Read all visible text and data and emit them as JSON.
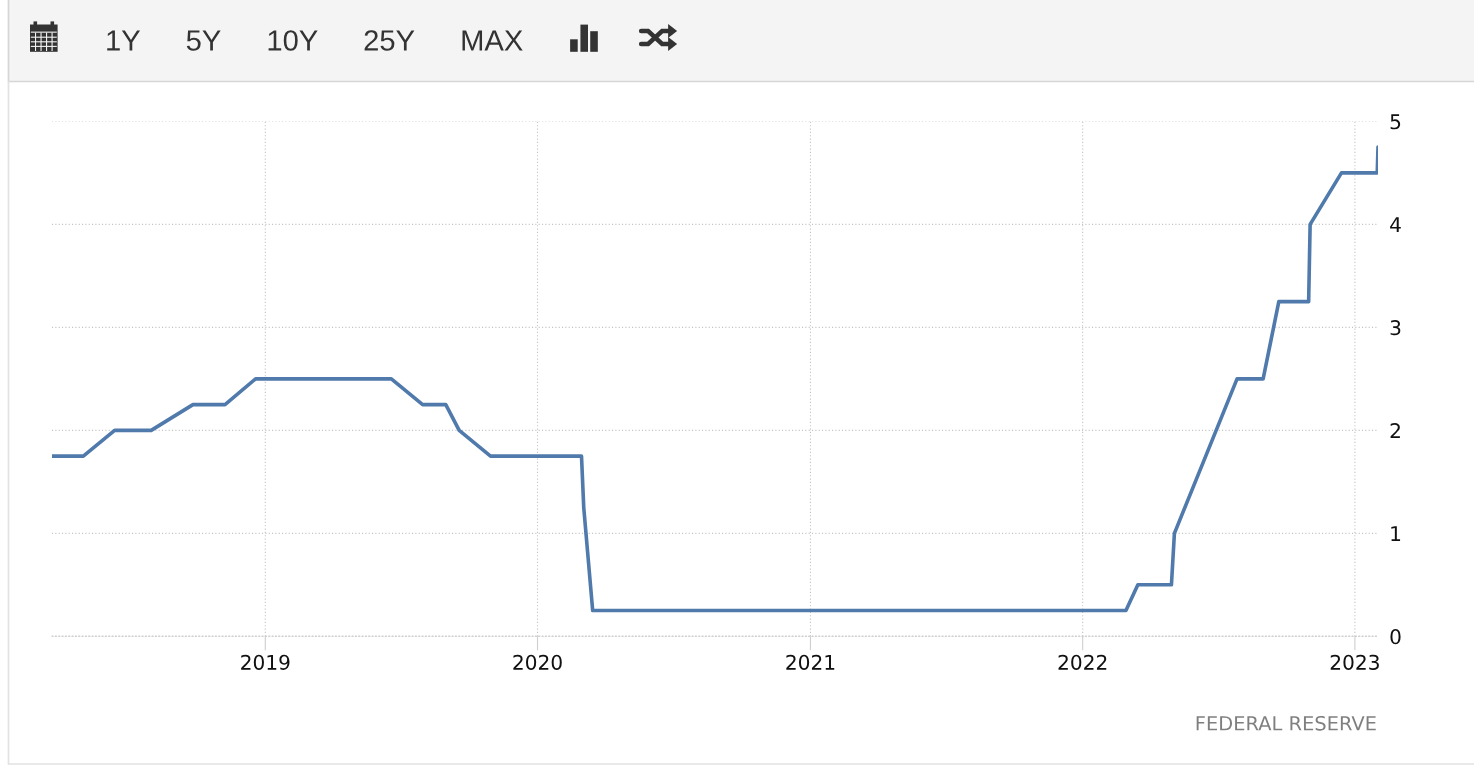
{
  "chart_data": {
    "type": "line",
    "x": [
      "2018-03-21",
      "2018-05-02",
      "2018-06-13",
      "2018-08-01",
      "2018-09-26",
      "2018-11-08",
      "2018-12-19",
      "2019-06-19",
      "2019-07-31",
      "2019-08-31",
      "2019-09-18",
      "2019-10-30",
      "2020-02-29",
      "2020-03-03",
      "2020-03-15",
      "2022-02-28",
      "2022-03-16",
      "2022-04-30",
      "2022-05-04",
      "2022-06-15",
      "2022-07-27",
      "2022-08-31",
      "2022-09-21",
      "2022-10-31",
      "2022-11-02",
      "2022-12-14",
      "2023-01-31",
      "2023-02-01"
    ],
    "values": [
      1.75,
      1.75,
      2.0,
      2.0,
      2.25,
      2.25,
      2.5,
      2.5,
      2.25,
      2.25,
      2.0,
      1.75,
      1.75,
      1.25,
      0.25,
      0.25,
      0.5,
      0.5,
      1.0,
      1.75,
      2.5,
      2.5,
      3.25,
      3.25,
      4.0,
      4.5,
      4.5,
      4.75
    ],
    "color": "#4f7aab",
    "line_style": "solid",
    "xlim": [
      "2018-03-21",
      "2023-02-01"
    ],
    "xticks": [
      {
        "value": "2019-01-01",
        "label": "2019"
      },
      {
        "value": "2020-01-01",
        "label": "2020"
      },
      {
        "value": "2021-01-01",
        "label": "2021"
      },
      {
        "value": "2022-01-01",
        "label": "2022"
      },
      {
        "value": "2023-01-01",
        "label": "2023"
      }
    ],
    "ylim": [
      0,
      5
    ],
    "yticks": [
      0,
      1,
      2,
      3,
      4,
      5
    ],
    "grid": true,
    "annotations": [
      "1Y",
      "5Y",
      "10Y",
      "25Y",
      "MAX",
      "FEDERAL RESERVE"
    ]
  }
}
